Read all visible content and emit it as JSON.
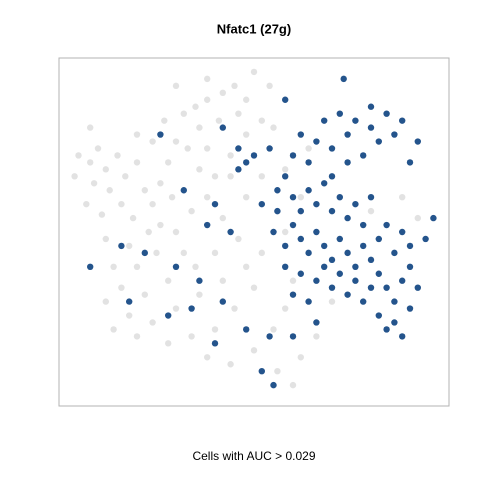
{
  "chart_data": {
    "type": "scatter",
    "title": "Nfatc1 (27g)",
    "x_label": "Cells with AUC > 0.029",
    "xlim": [
      0,
      100
    ],
    "ylim": [
      0,
      100
    ],
    "series": [
      {
        "color": "#d6d6d6",
        "x": [
          5,
          8,
          10,
          12,
          15,
          9,
          13,
          17,
          20,
          22,
          7,
          11,
          16,
          19,
          24,
          26,
          28,
          30,
          27,
          32,
          35,
          38,
          42,
          45,
          48,
          46,
          41,
          36,
          33,
          29,
          23,
          18,
          12,
          14,
          20,
          25,
          30,
          34,
          38,
          40,
          36,
          44,
          48,
          52,
          55,
          42,
          46,
          40,
          35,
          28,
          22,
          16,
          12,
          18,
          24,
          30,
          36,
          42,
          48,
          52,
          50,
          45,
          40,
          34,
          28,
          38,
          44,
          50,
          55,
          58,
          60,
          56,
          62,
          66,
          48,
          52,
          30,
          38,
          50,
          54,
          8,
          4,
          26,
          32,
          58,
          62,
          58,
          64,
          80,
          88,
          92,
          70,
          60,
          20,
          14,
          44,
          38,
          24,
          20
        ],
        "values": [
          72,
          70,
          74,
          68,
          72,
          64,
          62,
          66,
          70,
          62,
          58,
          55,
          58,
          54,
          58,
          64,
          70,
          76,
          82,
          84,
          86,
          88,
          90,
          92,
          88,
          84,
          82,
          80,
          74,
          60,
          50,
          46,
          48,
          40,
          40,
          44,
          50,
          56,
          60,
          66,
          68,
          72,
          78,
          82,
          80,
          54,
          48,
          44,
          40,
          36,
          32,
          34,
          30,
          26,
          24,
          28,
          32,
          36,
          40,
          44,
          34,
          28,
          22,
          20,
          18,
          14,
          12,
          16,
          22,
          28,
          36,
          10,
          14,
          20,
          60,
          66,
          92,
          94,
          96,
          92,
          80,
          66,
          52,
          44,
          50,
          60,
          68,
          74,
          56,
          60,
          54,
          30,
          6,
          20,
          22,
          66,
          74,
          76,
          78
        ]
      },
      {
        "color": "#184b86",
        "x": [
          55,
          58,
          60,
          62,
          64,
          66,
          68,
          70,
          72,
          74,
          76,
          78,
          80,
          82,
          84,
          86,
          88,
          90,
          86,
          82,
          78,
          74,
          70,
          66,
          62,
          58,
          62,
          66,
          70,
          74,
          78,
          82,
          86,
          90,
          92,
          88,
          84,
          90,
          94,
          96,
          56,
          60,
          64,
          68,
          72,
          76,
          80,
          72,
          68,
          76,
          80,
          64,
          60,
          88,
          84,
          60,
          64,
          66,
          70,
          74,
          78,
          82,
          86,
          88,
          84,
          80,
          76,
          72,
          68,
          92,
          90,
          80,
          74,
          70,
          58,
          62,
          54,
          50,
          46,
          16,
          22,
          30,
          36,
          42,
          28,
          40,
          48,
          54,
          52,
          55,
          44,
          38,
          32,
          40,
          46,
          26,
          42,
          48,
          8,
          18,
          34,
          60,
          66,
          73,
          58,
          52,
          56
        ],
        "values": [
          50,
          46,
          52,
          48,
          44,
          50,
          46,
          42,
          48,
          44,
          40,
          46,
          42,
          38,
          34,
          30,
          36,
          40,
          44,
          48,
          52,
          54,
          56,
          58,
          56,
          40,
          38,
          36,
          34,
          32,
          30,
          26,
          24,
          28,
          34,
          50,
          52,
          46,
          48,
          54,
          56,
          60,
          62,
          64,
          60,
          58,
          60,
          38,
          40,
          36,
          34,
          30,
          32,
          20,
          22,
          72,
          70,
          76,
          74,
          70,
          72,
          76,
          78,
          82,
          84,
          80,
          82,
          84,
          82,
          76,
          70,
          86,
          78,
          66,
          66,
          78,
          74,
          72,
          68,
          46,
          44,
          40,
          36,
          30,
          26,
          18,
          22,
          20,
          10,
          6,
          50,
          52,
          62,
          58,
          74,
          78,
          80,
          70,
          40,
          30,
          28,
          20,
          24,
          94,
          88,
          58,
          62
        ]
      }
    ]
  }
}
